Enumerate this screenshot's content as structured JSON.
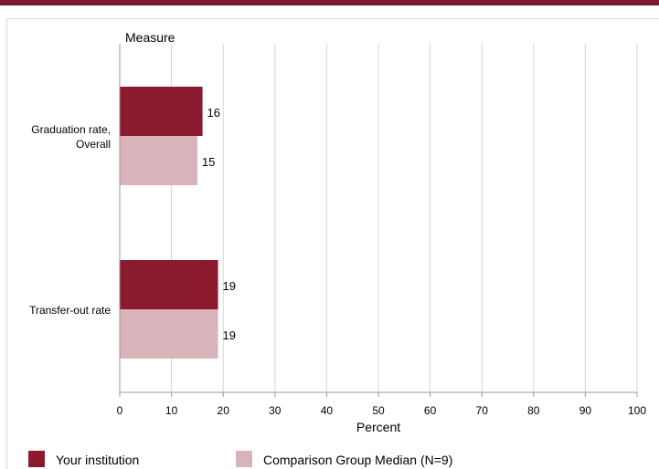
{
  "chart_data": {
    "type": "bar",
    "orientation": "horizontal",
    "title": "",
    "yaxis_title": "Measure",
    "xlabel": "Percent",
    "categories": [
      "Graduation rate, Overall",
      "Transfer-out rate"
    ],
    "category_lines": [
      [
        "Graduation rate,",
        "Overall"
      ],
      [
        "Transfer-out rate"
      ]
    ],
    "series": [
      {
        "name": "Your institution",
        "values": [
          16,
          19
        ],
        "color": "#8b1a2e"
      },
      {
        "name": "Comparison Group Median (N=9)",
        "values": [
          15,
          19
        ],
        "color": "#d9b3ba"
      }
    ],
    "xlim": [
      0,
      100
    ],
    "xticks": [
      0,
      10,
      20,
      30,
      40,
      50,
      60,
      70,
      80,
      90,
      100
    ],
    "grid": true,
    "legend_position": "bottom"
  }
}
